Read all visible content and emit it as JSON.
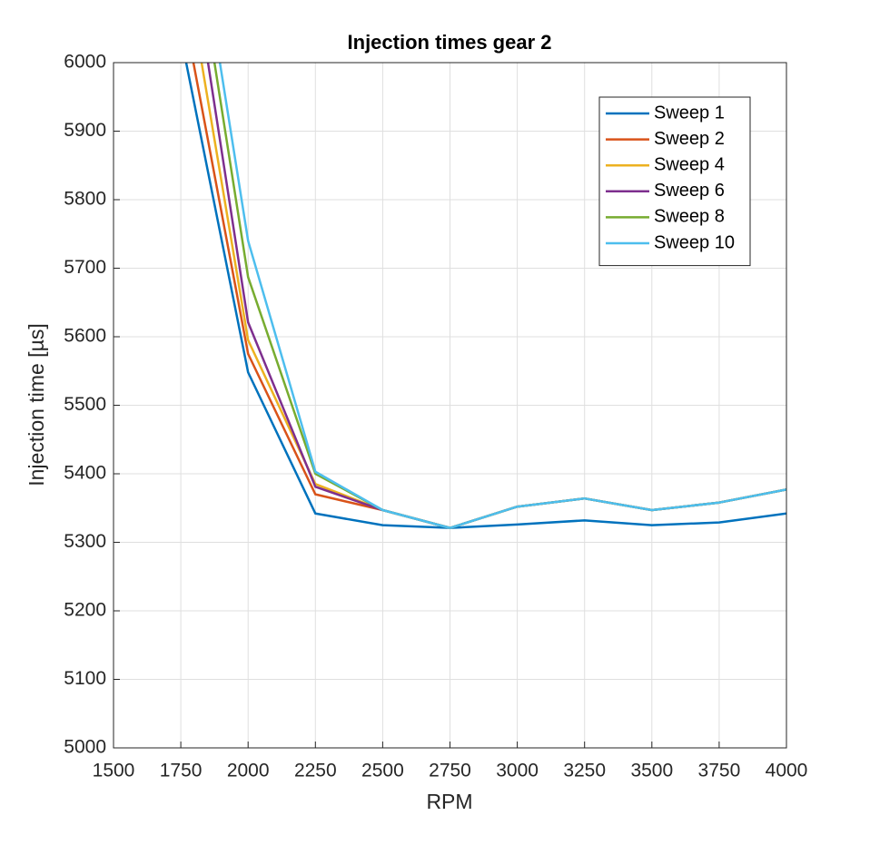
{
  "chart_data": {
    "type": "line",
    "title": "Injection times gear 2",
    "x_label": "RPM",
    "y_label": "Injection time [µs]",
    "x": [
      1750,
      2000,
      2250,
      2500,
      2750,
      3000,
      3250,
      3500,
      3750,
      4000
    ],
    "series": [
      {
        "name": "Sweep 1",
        "color": "#0072BD",
        "values": [
          6039,
          5548,
          5342,
          5325,
          5321,
          5326,
          5332,
          5325,
          5329,
          5342
        ]
      },
      {
        "name": "Sweep 2",
        "color": "#D95319",
        "values": [
          6098,
          5575,
          5370,
          5347,
          5321,
          5352,
          5364,
          5347,
          5358,
          5377
        ]
      },
      {
        "name": "Sweep 4",
        "color": "#EDB120",
        "values": [
          6181,
          5595,
          5385,
          5347,
          5321,
          5352,
          5364,
          5347,
          5358,
          5377
        ]
      },
      {
        "name": "Sweep 6",
        "color": "#7E2F8E",
        "values": [
          6257,
          5621,
          5381,
          5347,
          5321,
          5352,
          5364,
          5347,
          5358,
          5377
        ]
      },
      {
        "name": "Sweep 8",
        "color": "#77AC30",
        "values": [
          6313,
          5687,
          5400,
          5347,
          5321,
          5352,
          5364,
          5347,
          5358,
          5377
        ]
      },
      {
        "name": "Sweep 10",
        "color": "#4DBEEE",
        "values": [
          6360,
          5740,
          5403,
          5347,
          5321,
          5352,
          5364,
          5347,
          5358,
          5377
        ]
      }
    ],
    "xlim": [
      1500,
      4000
    ],
    "xticks": [
      1500,
      1750,
      2000,
      2250,
      2500,
      2750,
      3000,
      3250,
      3500,
      3750,
      4000
    ],
    "ylim": [
      5000,
      6000
    ],
    "yticks": [
      5000,
      5100,
      5200,
      5300,
      5400,
      5500,
      5600,
      5700,
      5800,
      5900,
      6000
    ],
    "grid": true,
    "legend_position": "northeast"
  }
}
